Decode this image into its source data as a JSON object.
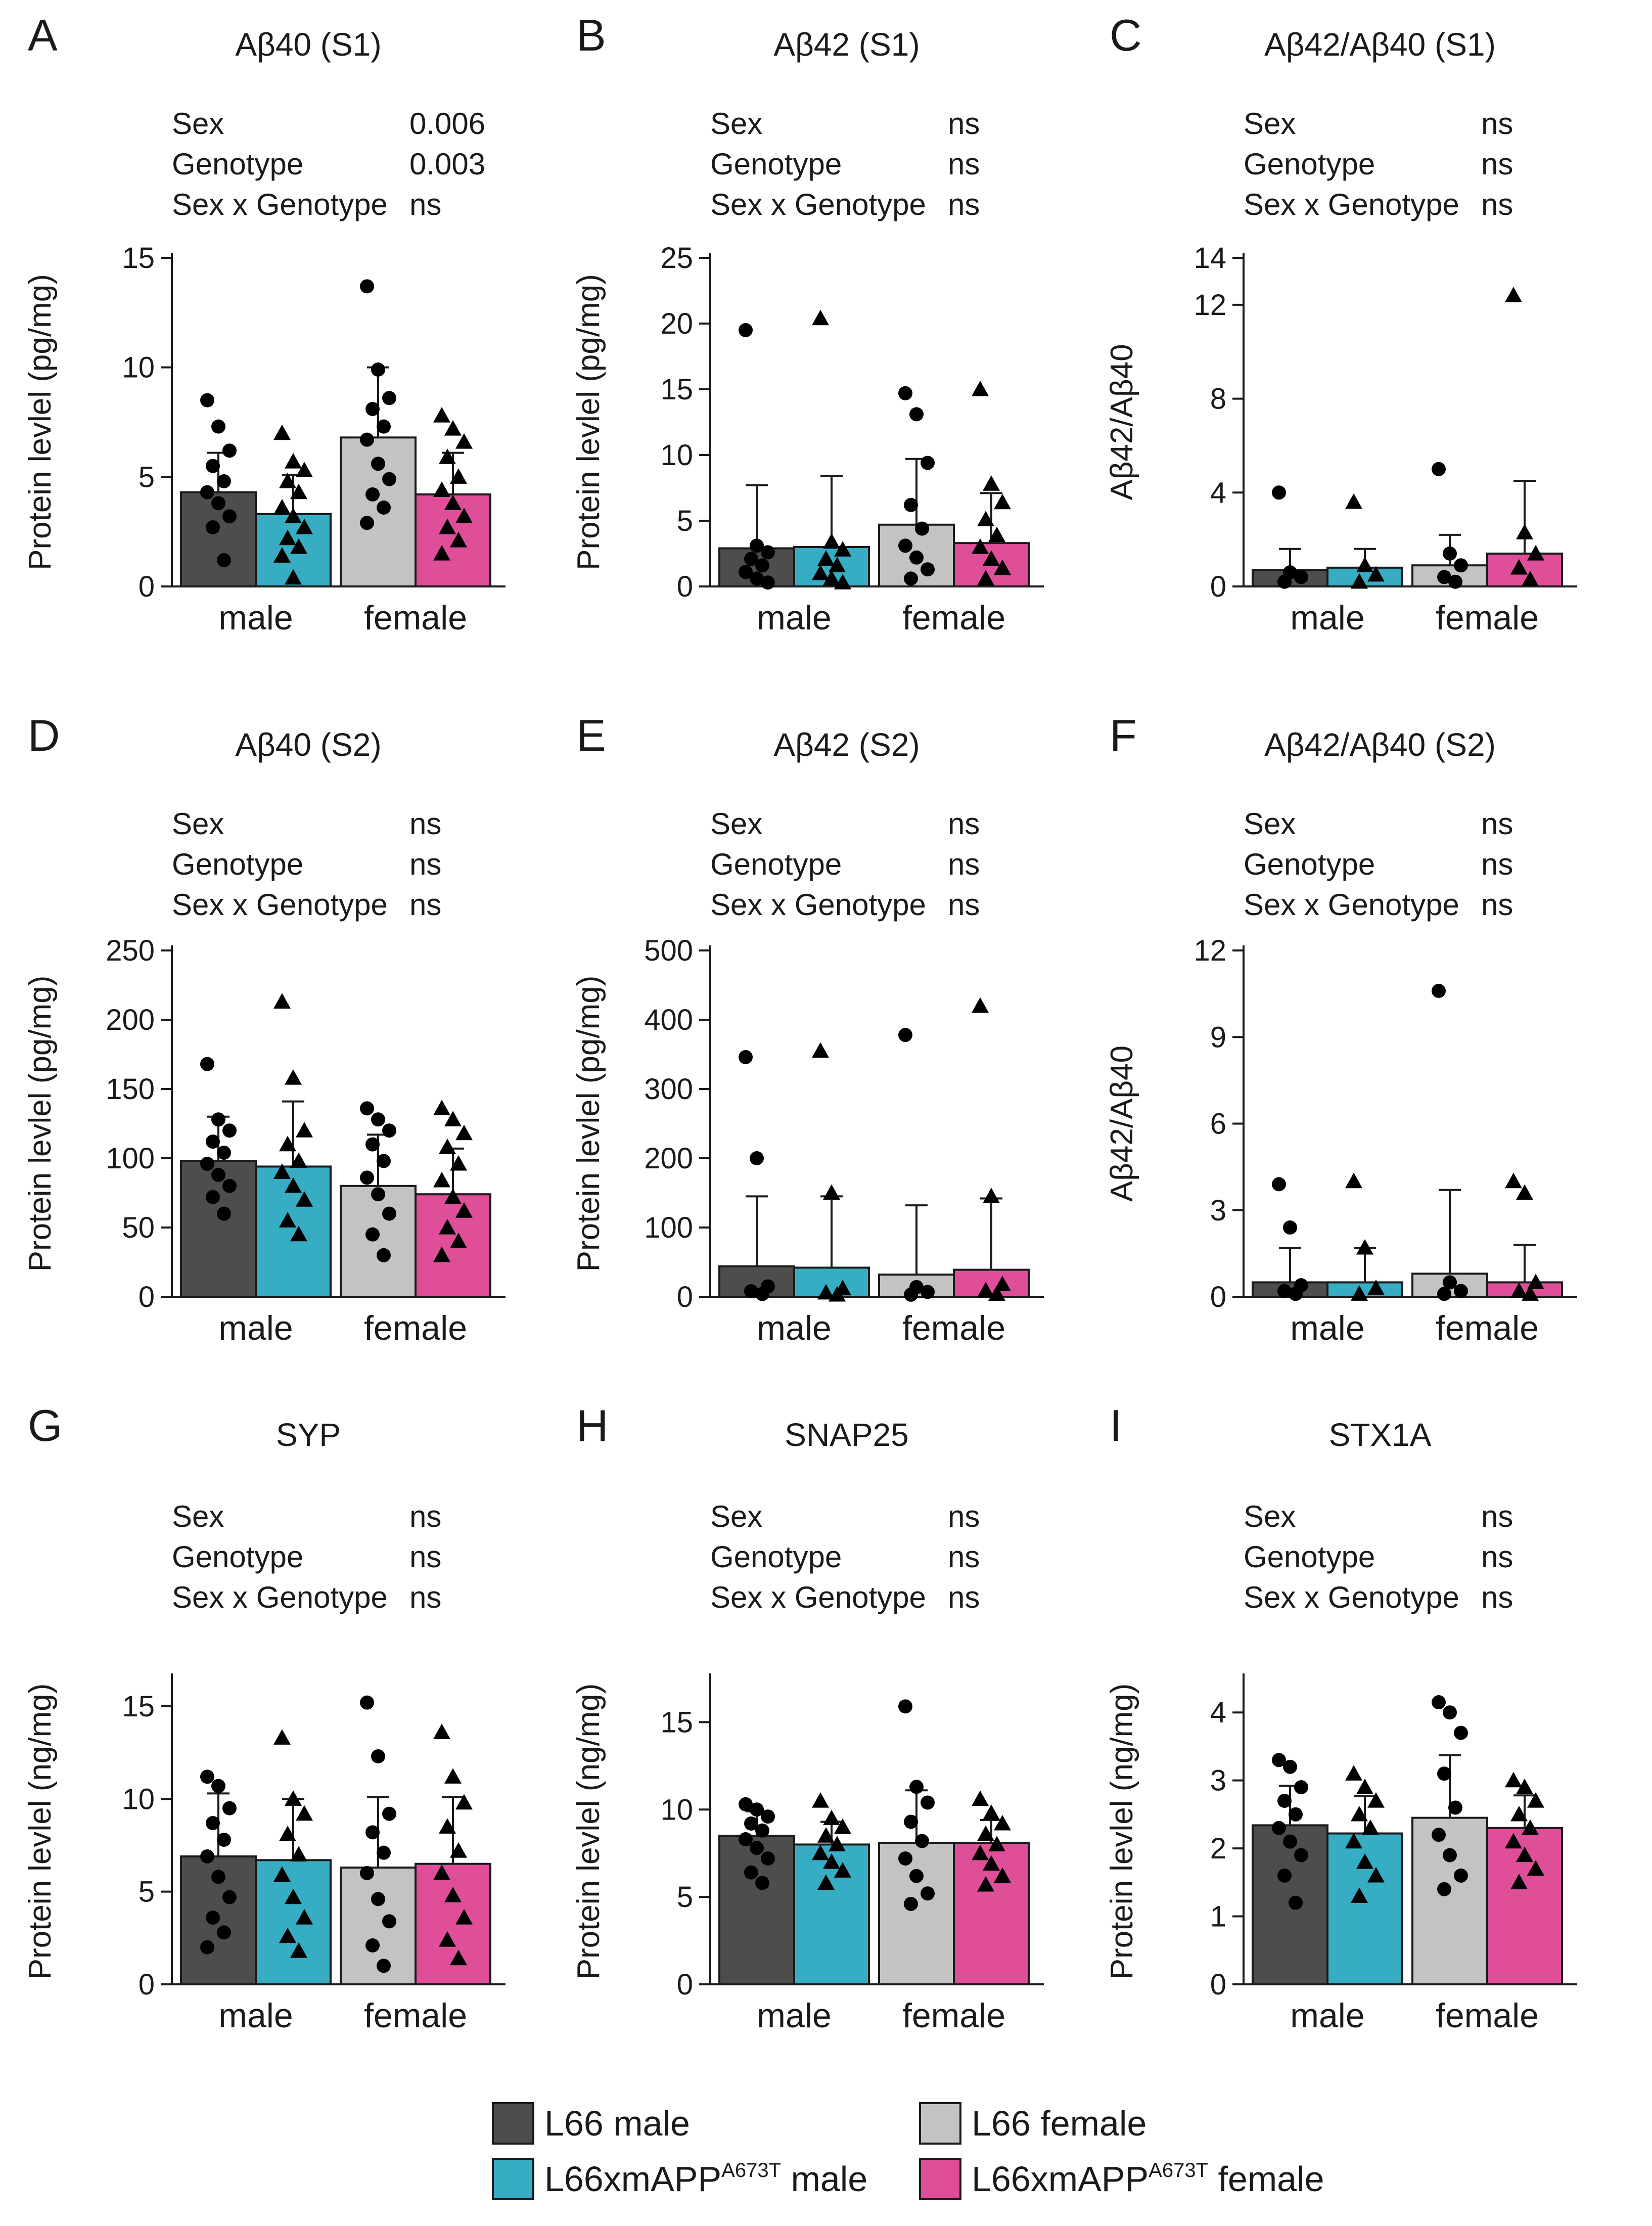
{
  "colors": {
    "L66 male": "#4d4d4d",
    "L66xmAPP male": "#37adc3",
    "L66 female": "#c3c3c3",
    "L66xmAPP female": "#df4f99",
    "axis": "#1a1a1a"
  },
  "legend": [
    {
      "label": "L66 male",
      "sup": "",
      "suffix": "",
      "color_key": "L66 male"
    },
    {
      "label": "L66 female",
      "sup": "",
      "suffix": "",
      "color_key": "L66 female"
    },
    {
      "label": "L66xmAPP",
      "sup": "A673T",
      "suffix": " male",
      "color_key": "L66xmAPP male"
    },
    {
      "label": "L66xmAPP",
      "sup": "A673T",
      "suffix": " female",
      "color_key": "L66xmAPP female"
    }
  ],
  "chart_data": [
    {
      "panel": "A",
      "type": "bar",
      "title": "Aβ40 (S1)",
      "ylabel": "Protein levlel (pg/mg)",
      "ylim": [
        0,
        15
      ],
      "yticks": [
        "0",
        "5",
        "10",
        "15"
      ],
      "categories": [
        "male",
        "female"
      ],
      "stats": [
        {
          "label": "Sex",
          "value": "0.006"
        },
        {
          "label": "Genotype",
          "value": "0.003"
        },
        {
          "label": "Sex x Genotype",
          "value": "ns"
        }
      ],
      "series": [
        {
          "name": "L66 male",
          "mean": 4.3,
          "sd": 1.8,
          "points": [
            8.5,
            7.3,
            6.2,
            5.5,
            4.8,
            4.3,
            3.8,
            3.2,
            2.7,
            1.2
          ]
        },
        {
          "name": "L66xmAPP male",
          "mean": 3.3,
          "sd": 1.8,
          "points": [
            7.0,
            5.7,
            5.3,
            4.8,
            4.3,
            3.6,
            3.2,
            2.7,
            2.2,
            1.8,
            1.4,
            0.4
          ]
        },
        {
          "name": "L66 female",
          "mean": 6.8,
          "sd": 3.2,
          "points": [
            13.7,
            9.9,
            8.6,
            8.1,
            7.3,
            6.7,
            5.6,
            4.9,
            4.2,
            3.6,
            2.9
          ]
        },
        {
          "name": "L66xmAPP female",
          "mean": 4.2,
          "sd": 1.9,
          "points": [
            7.8,
            7.2,
            6.6,
            5.9,
            5.0,
            4.4,
            3.8,
            3.2,
            2.7,
            2.1,
            1.5
          ]
        }
      ]
    },
    {
      "panel": "B",
      "type": "bar",
      "title": "Aβ42 (S1)",
      "ylabel": "Protein levlel (pg/mg)",
      "ylim": [
        0,
        25
      ],
      "yticks": [
        "0",
        "5",
        "10",
        "15",
        "20",
        "25"
      ],
      "categories": [
        "male",
        "female"
      ],
      "stats": [
        {
          "label": "Sex",
          "value": "ns"
        },
        {
          "label": "Genotype",
          "value": "ns"
        },
        {
          "label": "Sex x Genotype",
          "value": "ns"
        }
      ],
      "series": [
        {
          "name": "L66 male",
          "mean": 2.9,
          "sd": 4.8,
          "points": [
            19.5,
            3.1,
            2.6,
            2.1,
            1.6,
            1.1,
            0.6,
            0.3
          ]
        },
        {
          "name": "L66xmAPP male",
          "mean": 3.0,
          "sd": 5.4,
          "points": [
            20.4,
            3.4,
            2.8,
            2.1,
            1.6,
            1.0,
            0.6,
            0.3
          ]
        },
        {
          "name": "L66 female",
          "mean": 4.7,
          "sd": 5.0,
          "points": [
            14.7,
            13.1,
            9.4,
            6.2,
            4.4,
            3.1,
            2.2,
            1.3,
            0.6
          ]
        },
        {
          "name": "L66xmAPP female",
          "mean": 3.3,
          "sd": 3.8,
          "points": [
            15.0,
            7.8,
            6.4,
            5.1,
            3.9,
            3.0,
            2.1,
            1.4,
            0.6
          ]
        }
      ]
    },
    {
      "panel": "C",
      "type": "bar",
      "title": "Aβ42/Aβ40 (S1)",
      "ylabel": "Aβ42/Aβ40",
      "ylim": [
        0,
        14
      ],
      "yticks": [
        "0",
        "4",
        "8",
        "12",
        "14"
      ],
      "ytick_values": [
        0,
        4,
        8,
        12,
        14
      ],
      "categories": [
        "male",
        "female"
      ],
      "stats": [
        {
          "label": "Sex",
          "value": "ns"
        },
        {
          "label": "Genotype",
          "value": "ns"
        },
        {
          "label": "Sex x Genotype",
          "value": "ns"
        }
      ],
      "series": [
        {
          "name": "L66 male",
          "mean": 0.7,
          "sd": 0.9,
          "points": [
            4.0,
            0.6,
            0.4,
            0.2
          ]
        },
        {
          "name": "L66xmAPP male",
          "mean": 0.8,
          "sd": 0.8,
          "points": [
            3.6,
            0.9,
            0.5,
            0.2
          ]
        },
        {
          "name": "L66 female",
          "mean": 0.9,
          "sd": 1.3,
          "points": [
            5.0,
            1.4,
            0.9,
            0.4,
            0.2
          ]
        },
        {
          "name": "L66xmAPP female",
          "mean": 1.4,
          "sd": 3.1,
          "points": [
            12.4,
            2.3,
            1.4,
            0.8,
            0.3
          ]
        }
      ]
    },
    {
      "panel": "D",
      "type": "bar",
      "title": "Aβ40 (S2)",
      "ylabel": "Protein levlel (pg/mg)",
      "ylim": [
        0,
        250
      ],
      "yticks": [
        "0",
        "50",
        "100",
        "150",
        "200",
        "250"
      ],
      "categories": [
        "male",
        "female"
      ],
      "stats": [
        {
          "label": "Sex",
          "value": "ns"
        },
        {
          "label": "Genotype",
          "value": "ns"
        },
        {
          "label": "Sex x Genotype",
          "value": "ns"
        }
      ],
      "series": [
        {
          "name": "L66 male",
          "mean": 98,
          "sd": 32,
          "points": [
            168,
            128,
            120,
            112,
            104,
            96,
            88,
            80,
            72,
            60
          ]
        },
        {
          "name": "L66xmAPP male",
          "mean": 94,
          "sd": 47,
          "points": [
            213,
            158,
            120,
            110,
            98,
            90,
            80,
            70,
            55,
            45
          ]
        },
        {
          "name": "L66 female",
          "mean": 80,
          "sd": 37,
          "points": [
            136,
            128,
            120,
            110,
            98,
            86,
            74,
            60,
            45,
            30
          ]
        },
        {
          "name": "L66xmAPP female",
          "mean": 74,
          "sd": 33,
          "points": [
            136,
            128,
            118,
            108,
            96,
            84,
            72,
            62,
            50,
            40,
            30
          ]
        }
      ]
    },
    {
      "panel": "E",
      "type": "bar",
      "title": "Aβ42 (S2)",
      "ylabel": "Protein levlel (pg/mg)",
      "ylim": [
        0,
        500
      ],
      "yticks": [
        "0",
        "100",
        "200",
        "300",
        "400",
        "500"
      ],
      "categories": [
        "male",
        "female"
      ],
      "stats": [
        {
          "label": "Sex",
          "value": "ns"
        },
        {
          "label": "Genotype",
          "value": "ns"
        },
        {
          "label": "Sex x Genotype",
          "value": "ns"
        }
      ],
      "series": [
        {
          "name": "L66 male",
          "mean": 44,
          "sd": 101,
          "points": [
            346,
            200,
            15,
            8,
            4
          ]
        },
        {
          "name": "L66xmAPP male",
          "mean": 42,
          "sd": 103,
          "points": [
            355,
            150,
            12,
            6,
            3
          ]
        },
        {
          "name": "L66 female",
          "mean": 32,
          "sd": 100,
          "points": [
            378,
            14,
            7,
            3
          ]
        },
        {
          "name": "L66xmAPP female",
          "mean": 39,
          "sd": 103,
          "points": [
            420,
            145,
            18,
            9,
            4
          ]
        }
      ]
    },
    {
      "panel": "F",
      "type": "bar",
      "title": "Aβ42/Aβ40 (S2)",
      "ylabel": "Aβ42/Aβ40",
      "ylim": [
        0,
        12
      ],
      "yticks": [
        "0",
        "3",
        "6",
        "9",
        "12"
      ],
      "categories": [
        "male",
        "female"
      ],
      "stats": [
        {
          "label": "Sex",
          "value": "ns"
        },
        {
          "label": "Genotype",
          "value": "ns"
        },
        {
          "label": "Sex x Genotype",
          "value": "ns"
        }
      ],
      "series": [
        {
          "name": "L66 male",
          "mean": 0.5,
          "sd": 1.2,
          "points": [
            3.9,
            2.4,
            0.4,
            0.2,
            0.1
          ]
        },
        {
          "name": "L66xmAPP male",
          "mean": 0.5,
          "sd": 1.2,
          "points": [
            4.0,
            1.7,
            0.3,
            0.1
          ]
        },
        {
          "name": "L66 female",
          "mean": 0.8,
          "sd": 2.9,
          "points": [
            10.6,
            0.5,
            0.2,
            0.1
          ]
        },
        {
          "name": "L66xmAPP female",
          "mean": 0.5,
          "sd": 1.3,
          "points": [
            4.0,
            3.6,
            0.5,
            0.2,
            0.1
          ]
        }
      ]
    },
    {
      "panel": "G",
      "type": "bar",
      "title": "SYP",
      "ylabel": "Protein levlel (ng/mg)",
      "ylim": [
        0,
        16.5
      ],
      "yticks": [
        "0",
        "5",
        "10",
        "15"
      ],
      "ytick_values": [
        0,
        5,
        10,
        15
      ],
      "categories": [
        "male",
        "female"
      ],
      "stats": [
        {
          "label": "Sex",
          "value": "ns"
        },
        {
          "label": "Genotype",
          "value": "ns"
        },
        {
          "label": "Sex x Genotype",
          "value": "ns"
        }
      ],
      "series": [
        {
          "name": "L66 male",
          "mean": 6.9,
          "sd": 3.4,
          "points": [
            11.2,
            10.7,
            9.5,
            8.7,
            7.8,
            6.9,
            5.8,
            4.7,
            3.6,
            2.8,
            2.0
          ]
        },
        {
          "name": "L66xmAPP male",
          "mean": 6.7,
          "sd": 3.3,
          "points": [
            13.3,
            10.0,
            9.2,
            8.1,
            7.0,
            5.9,
            4.7,
            3.6,
            2.6,
            1.8
          ]
        },
        {
          "name": "L66 female",
          "mean": 6.3,
          "sd": 3.8,
          "points": [
            15.2,
            12.3,
            9.2,
            8.2,
            7.1,
            6.0,
            4.6,
            3.4,
            2.1,
            1.0
          ]
        },
        {
          "name": "L66xmAPP female",
          "mean": 6.5,
          "sd": 3.6,
          "points": [
            13.6,
            11.2,
            9.8,
            8.5,
            7.2,
            6.0,
            4.8,
            3.6,
            2.4,
            1.4
          ]
        }
      ]
    },
    {
      "panel": "H",
      "type": "bar",
      "title": "SNAP25",
      "ylabel": "Protein levlel (ng/mg)",
      "ylim": [
        0,
        17.5
      ],
      "yticks": [
        "0",
        "5",
        "10",
        "15"
      ],
      "ytick_values": [
        0,
        5,
        10,
        15
      ],
      "categories": [
        "male",
        "female"
      ],
      "stats": [
        {
          "label": "Sex",
          "value": "ns"
        },
        {
          "label": "Genotype",
          "value": "ns"
        },
        {
          "label": "Sex x Genotype",
          "value": "ns"
        }
      ],
      "series": [
        {
          "name": "L66 male",
          "mean": 8.5,
          "sd": 1.4,
          "points": [
            10.3,
            10.0,
            9.6,
            9.2,
            8.8,
            8.3,
            7.8,
            7.2,
            6.4,
            5.8
          ]
        },
        {
          "name": "L66xmAPP male",
          "mean": 8.0,
          "sd": 1.3,
          "points": [
            10.5,
            9.5,
            9.0,
            8.5,
            8.0,
            7.5,
            7.0,
            6.5,
            5.8
          ]
        },
        {
          "name": "L66 female",
          "mean": 8.1,
          "sd": 3.0,
          "points": [
            15.9,
            11.3,
            10.4,
            9.3,
            8.2,
            7.2,
            6.2,
            5.2,
            4.6
          ]
        },
        {
          "name": "L66xmAPP female",
          "mean": 8.1,
          "sd": 1.3,
          "points": [
            10.6,
            9.8,
            9.2,
            8.6,
            8.0,
            7.5,
            6.9,
            6.2,
            5.7
          ]
        }
      ]
    },
    {
      "panel": "I",
      "type": "bar",
      "title": "STX1A",
      "ylabel": "Protein levlel (ng/mg)",
      "ylim": [
        0,
        4.5
      ],
      "yticks": [
        "0",
        "1",
        "2",
        "3",
        "4"
      ],
      "ytick_values": [
        0,
        1,
        2,
        3,
        4
      ],
      "categories": [
        "male",
        "female"
      ],
      "stats": [
        {
          "label": "Sex",
          "value": "ns"
        },
        {
          "label": "Genotype",
          "value": "ns"
        },
        {
          "label": "Sex x Genotype",
          "value": "ns"
        }
      ],
      "series": [
        {
          "name": "L66 male",
          "mean": 2.34,
          "sd": 0.58,
          "points": [
            3.3,
            3.2,
            2.9,
            2.7,
            2.5,
            2.3,
            2.1,
            1.9,
            1.6,
            1.2
          ]
        },
        {
          "name": "L66xmAPP male",
          "mean": 2.22,
          "sd": 0.55,
          "points": [
            3.1,
            2.9,
            2.7,
            2.5,
            2.3,
            2.1,
            1.8,
            1.6,
            1.3
          ]
        },
        {
          "name": "L66 female",
          "mean": 2.45,
          "sd": 0.92,
          "points": [
            4.15,
            4.0,
            3.7,
            3.1,
            2.6,
            2.2,
            1.9,
            1.6,
            1.4
          ]
        },
        {
          "name": "L66xmAPP female",
          "mean": 2.3,
          "sd": 0.48,
          "points": [
            3.0,
            2.9,
            2.7,
            2.5,
            2.3,
            2.1,
            1.9,
            1.7,
            1.5
          ]
        }
      ]
    }
  ]
}
